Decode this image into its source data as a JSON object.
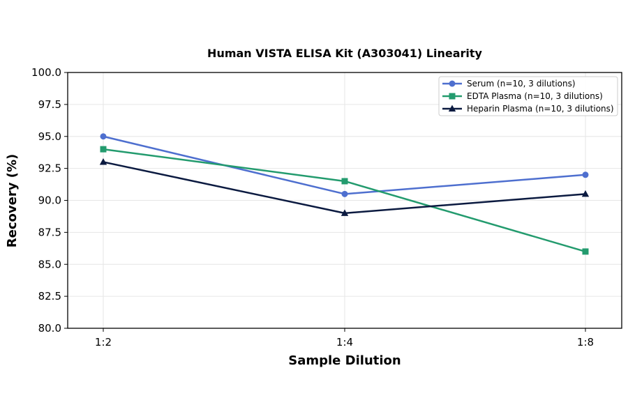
{
  "chart_data": {
    "type": "line",
    "title": "Human VISTA ELISA Kit (A303041) Linearity",
    "xlabel": "Sample Dilution",
    "ylabel": "Recovery (%)",
    "categories": [
      "1:2",
      "1:4",
      "1:8"
    ],
    "ylim": [
      80.0,
      100.0
    ],
    "yticks": [
      "80.0",
      "82.5",
      "85.0",
      "87.5",
      "90.0",
      "92.5",
      "95.0",
      "97.5",
      "100.0"
    ],
    "grid": true,
    "legend_position": "top-right",
    "series": [
      {
        "name": "Serum (n=10, 3 dilutions)",
        "values": [
          95.0,
          90.5,
          92.0
        ],
        "color": "#4e6fcf",
        "marker": "circle"
      },
      {
        "name": "EDTA Plasma (n=10, 3 dilutions)",
        "values": [
          94.0,
          91.5,
          86.0
        ],
        "color": "#239b6e",
        "marker": "square"
      },
      {
        "name": "Heparin Plasma (n=10, 3 dilutions)",
        "values": [
          93.0,
          89.0,
          90.5
        ],
        "color": "#0b1a40",
        "marker": "triangle"
      }
    ]
  }
}
